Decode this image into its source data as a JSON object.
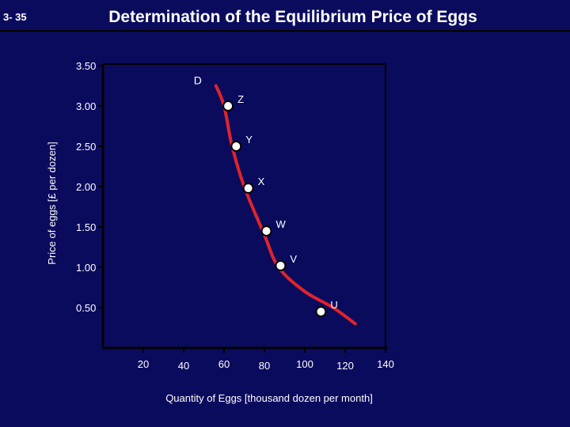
{
  "slide": {
    "number": "3- 35",
    "title": "Determination of the Equilibrium Price of Eggs"
  },
  "colors": {
    "background": "#0b0b5e",
    "curve": "#e0242a",
    "axis": "#000000",
    "text": "#ffffff",
    "point_fill": "#ffffff"
  },
  "chart_data": {
    "type": "line",
    "title": "",
    "xlabel": "Quantity of Eggs [thousand dozen per month]",
    "ylabel": "Price of eggs [£ per dozen]",
    "xlim": [
      0,
      140
    ],
    "ylim": [
      0,
      3.5
    ],
    "x_ticks": [
      "20",
      "40",
      "60",
      "80",
      "100",
      "120",
      "140"
    ],
    "y_ticks": [
      "0.50",
      "1.00",
      "1.50",
      "2.00",
      "2.50",
      "3.00",
      "3.50"
    ],
    "grid": false,
    "curve_label": "D",
    "curve": [
      {
        "x": 56,
        "y": 3.25
      },
      {
        "x": 60,
        "y": 3.0
      },
      {
        "x": 64,
        "y": 2.5
      },
      {
        "x": 70,
        "y": 2.0
      },
      {
        "x": 80,
        "y": 1.4
      },
      {
        "x": 87,
        "y": 1.0
      },
      {
        "x": 100,
        "y": 0.7
      },
      {
        "x": 114,
        "y": 0.5
      },
      {
        "x": 125,
        "y": 0.3
      }
    ],
    "points": [
      {
        "label": "Z",
        "x": 62,
        "y": 3.0
      },
      {
        "label": "Y",
        "x": 66,
        "y": 2.5
      },
      {
        "label": "X",
        "x": 72,
        "y": 1.98
      },
      {
        "label": "W",
        "x": 81,
        "y": 1.45
      },
      {
        "label": "V",
        "x": 88,
        "y": 1.02
      },
      {
        "label": "U",
        "x": 108,
        "y": 0.45
      }
    ]
  }
}
